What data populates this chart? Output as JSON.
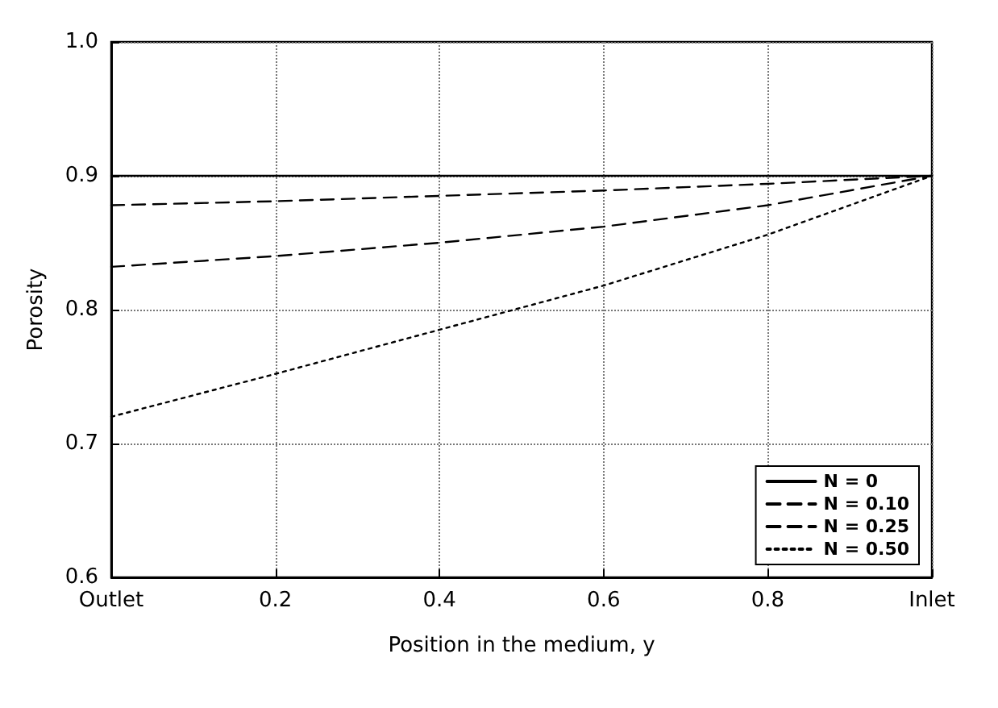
{
  "chart_data": {
    "type": "line",
    "xlabel": "Position in the medium, y",
    "ylabel": "Porosity",
    "x": [
      0,
      0.2,
      0.4,
      0.6,
      0.8,
      1
    ],
    "series": [
      {
        "name": "N = 0",
        "color": "#000000",
        "line_style": "solid",
        "values": [
          0.9,
          0.9,
          0.9,
          0.9,
          0.9,
          0.9
        ]
      },
      {
        "name": "N = 0.10",
        "color": "#000000",
        "line_style": "dashed",
        "values": [
          0.878,
          0.881,
          0.885,
          0.889,
          0.894,
          0.9
        ]
      },
      {
        "name": "N = 0.25",
        "color": "#000000",
        "line_style": "dashed",
        "values": [
          0.832,
          0.84,
          0.85,
          0.862,
          0.878,
          0.9
        ]
      },
      {
        "name": "N = 0.50",
        "color": "#000000",
        "line_style": "dotted",
        "values": [
          0.72,
          0.752,
          0.785,
          0.818,
          0.856,
          0.9
        ]
      }
    ],
    "xlim": [
      0,
      1
    ],
    "xticks": [
      {
        "value": 0,
        "label": "Outlet"
      },
      0.2,
      0.4,
      0.6,
      0.8,
      {
        "value": 1,
        "label": "Inlet"
      }
    ],
    "ylim": [
      0.6,
      1.0
    ],
    "yticks": [
      0.6,
      0.7,
      0.8,
      0.9,
      {
        "value": 1,
        "label": "1.0"
      }
    ],
    "grid": true,
    "legend": "bottom right",
    "marker": "none"
  }
}
